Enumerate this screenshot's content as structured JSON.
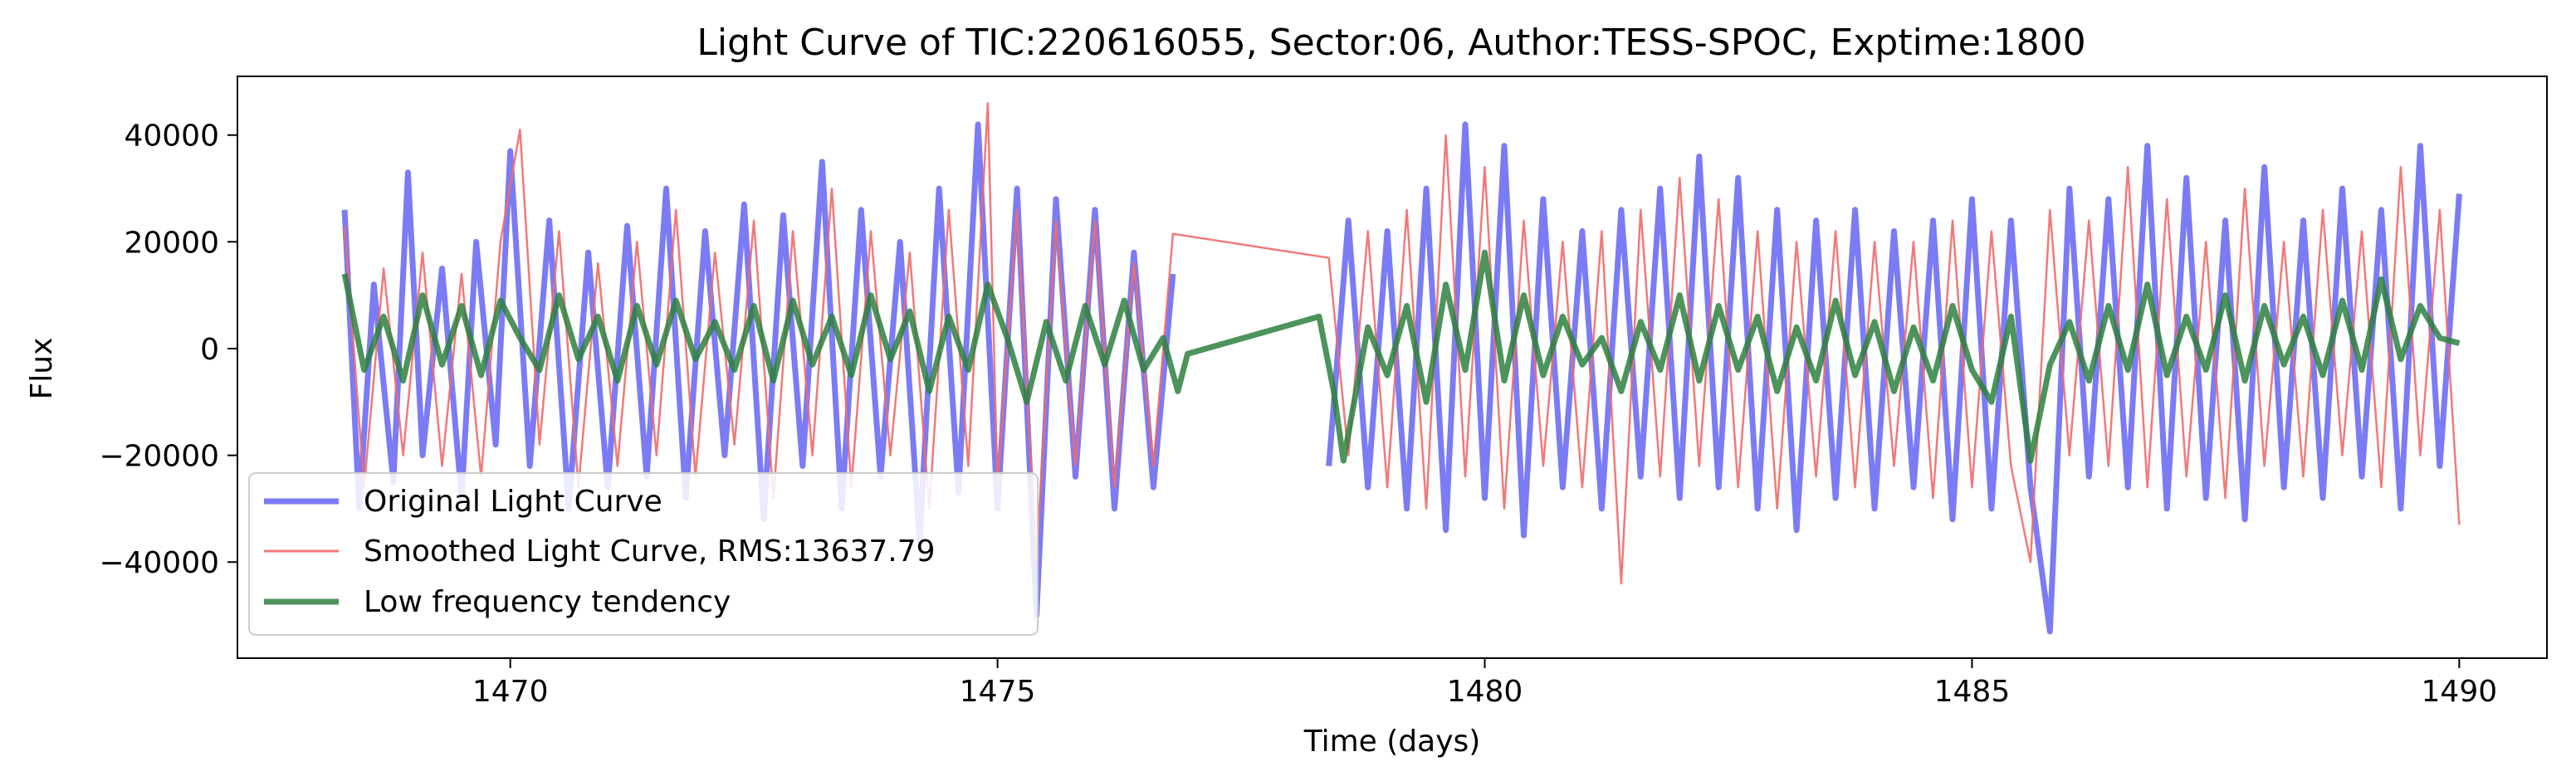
{
  "chart_data": {
    "type": "line",
    "title": "Light Curve of TIC:220616055, Sector:06, Author:TESS-SPOC, Exptime:1800",
    "xlabel": "Time (days)",
    "ylabel": "Flux",
    "xlim": [
      1467.2,
      1490.9
    ],
    "ylim": [
      -58000,
      51000
    ],
    "xticks": [
      1470,
      1475,
      1480,
      1485,
      1490
    ],
    "yticks": [
      -40000,
      -20000,
      0,
      20000,
      40000
    ],
    "xtick_labels": [
      "1470",
      "1475",
      "1480",
      "1485",
      "1490"
    ],
    "ytick_labels": [
      "−40000",
      "−20000",
      "0",
      "20000",
      "40000"
    ],
    "grid": false,
    "legend_position": "lower-left",
    "gap": [
      1476.9,
      1478.4
    ],
    "series": [
      {
        "name": "Original Light Curve",
        "color": "#7b7bf5",
        "segments": [
          {
            "x": [
              1468.3,
              1468.45,
              1468.6,
              1468.8,
              1468.95,
              1469.1,
              1469.3,
              1469.5,
              1469.65,
              1469.85,
              1470.0,
              1470.2,
              1470.4,
              1470.6,
              1470.8,
              1471.0,
              1471.2,
              1471.4,
              1471.6,
              1471.8,
              1472.0,
              1472.2,
              1472.4,
              1472.6,
              1472.8,
              1473.0,
              1473.2,
              1473.4,
              1473.6,
              1473.8,
              1474.0,
              1474.2,
              1474.4,
              1474.6,
              1474.8,
              1475.0,
              1475.2,
              1475.4,
              1475.6,
              1475.8,
              1476.0,
              1476.2,
              1476.4,
              1476.6,
              1476.8
            ],
            "y": [
              26000,
              -30000,
              12000,
              -25000,
              33000,
              -20000,
              15000,
              -28000,
              20000,
              -18000,
              37000,
              -22000,
              24000,
              -30000,
              18000,
              -26000,
              23000,
              -24000,
              30000,
              -28000,
              22000,
              -20000,
              27000,
              -32000,
              25000,
              -22000,
              35000,
              -30000,
              26000,
              -24000,
              20000,
              -36000,
              30000,
              -27000,
              42000,
              -30000,
              30000,
              -50000,
              28000,
              -24000,
              26000,
              -30000,
              18000,
              -26000,
              14000
            ]
          },
          {
            "x": [
              1478.4,
              1478.6,
              1478.8,
              1479.0,
              1479.2,
              1479.4,
              1479.6,
              1479.8,
              1480.0,
              1480.2,
              1480.4,
              1480.6,
              1480.8,
              1481.0,
              1481.2,
              1481.4,
              1481.6,
              1481.8,
              1482.0,
              1482.2,
              1482.4,
              1482.6,
              1482.8,
              1483.0,
              1483.2,
              1483.4,
              1483.6,
              1483.8,
              1484.0,
              1484.2,
              1484.4,
              1484.6,
              1484.8,
              1485.0,
              1485.2,
              1485.4,
              1485.6,
              1485.8,
              1486.0,
              1486.2,
              1486.4,
              1486.6,
              1486.8,
              1487.0,
              1487.2,
              1487.4,
              1487.6,
              1487.8,
              1488.0,
              1488.2,
              1488.4,
              1488.6,
              1488.8,
              1489.0,
              1489.2,
              1489.4,
              1489.6,
              1489.8,
              1490.0
            ],
            "y": [
              -22000,
              24000,
              -26000,
              22000,
              -30000,
              30000,
              -34000,
              42000,
              -28000,
              38000,
              -35000,
              28000,
              -26000,
              22000,
              -30000,
              26000,
              -24000,
              30000,
              -28000,
              36000,
              -26000,
              32000,
              -30000,
              26000,
              -34000,
              24000,
              -28000,
              26000,
              -30000,
              22000,
              -26000,
              24000,
              -32000,
              28000,
              -30000,
              24000,
              -26000,
              -53000,
              30000,
              -24000,
              28000,
              -26000,
              38000,
              -30000,
              32000,
              -28000,
              24000,
              -32000,
              34000,
              -26000,
              24000,
              -28000,
              30000,
              -24000,
              26000,
              -30000,
              38000,
              -22000,
              29000
            ]
          }
        ]
      },
      {
        "name": "Smoothed Light Curve, RMS:13637.79",
        "color": "#f16a6a",
        "segments": [
          {
            "x": [
              1468.3,
              1468.5,
              1468.7,
              1468.9,
              1469.1,
              1469.3,
              1469.5,
              1469.7,
              1469.9,
              1470.1,
              1470.3,
              1470.5,
              1470.7,
              1470.9,
              1471.1,
              1471.3,
              1471.5,
              1471.7,
              1471.9,
              1472.1,
              1472.3,
              1472.5,
              1472.7,
              1472.9,
              1473.1,
              1473.3,
              1473.5,
              1473.7,
              1473.9,
              1474.1,
              1474.3,
              1474.5,
              1474.7,
              1474.9,
              1475.0,
              1475.2,
              1475.4,
              1475.6,
              1475.8,
              1476.0,
              1476.2,
              1476.4,
              1476.6,
              1476.8,
              1478.4,
              1478.6,
              1478.8,
              1479.0,
              1479.2,
              1479.4,
              1479.6,
              1479.8,
              1480.0,
              1480.2,
              1480.4,
              1480.6,
              1480.8,
              1481.0,
              1481.2,
              1481.4,
              1481.6,
              1481.8,
              1482.0,
              1482.2,
              1482.4,
              1482.6,
              1482.8,
              1483.0,
              1483.2,
              1483.4,
              1483.6,
              1483.8,
              1484.0,
              1484.2,
              1484.4,
              1484.6,
              1484.8,
              1485.0,
              1485.2,
              1485.4,
              1485.6,
              1485.8,
              1486.0,
              1486.2,
              1486.4,
              1486.6,
              1486.8,
              1487.0,
              1487.2,
              1487.4,
              1487.6,
              1487.8,
              1488.0,
              1488.2,
              1488.4,
              1488.6,
              1488.8,
              1489.0,
              1489.2,
              1489.4,
              1489.6,
              1489.8,
              1490.0
            ],
            "y": [
              23000,
              -26000,
              15000,
              -20000,
              18000,
              -22000,
              14000,
              -24000,
              20000,
              41000,
              -18000,
              22000,
              -26000,
              16000,
              -22000,
              20000,
              -20000,
              26000,
              -24000,
              18000,
              -18000,
              24000,
              -28000,
              22000,
              -20000,
              30000,
              -26000,
              22000,
              -20000,
              18000,
              -30000,
              26000,
              -22000,
              46000,
              -26000,
              26000,
              -40000,
              24000,
              -22000,
              24000,
              -26000,
              16000,
              -22000,
              21500,
              17000,
              -20000,
              22000,
              -26000,
              26000,
              -30000,
              40000,
              -24000,
              34000,
              -30000,
              24000,
              -22000,
              20000,
              -26000,
              22000,
              -44000,
              26000,
              -24000,
              32000,
              -22000,
              28000,
              -26000,
              22000,
              -30000,
              20000,
              -24000,
              22000,
              -26000,
              20000,
              -22000,
              20000,
              -28000,
              24000,
              -26000,
              22000,
              -22000,
              -40000,
              26000,
              -20000,
              24000,
              -22000,
              34000,
              -26000,
              28000,
              -24000,
              20000,
              -28000,
              30000,
              -22000,
              20000,
              -24000,
              26000,
              -20000,
              22000,
              -26000,
              34000,
              -20000,
              26000,
              -33000
            ]
          }
        ]
      },
      {
        "name": "Low frequency tendency",
        "color": "#2e8040",
        "segments": [
          {
            "x": [
              1468.3,
              1468.5,
              1468.7,
              1468.9,
              1469.1,
              1469.3,
              1469.5,
              1469.7,
              1469.9,
              1470.1,
              1470.3,
              1470.5,
              1470.7,
              1470.9,
              1471.1,
              1471.3,
              1471.5,
              1471.7,
              1471.9,
              1472.1,
              1472.3,
              1472.5,
              1472.7,
              1472.9,
              1473.1,
              1473.3,
              1473.5,
              1473.7,
              1473.9,
              1474.1,
              1474.3,
              1474.5,
              1474.7,
              1474.9,
              1475.1,
              1475.3,
              1475.5,
              1475.7,
              1475.9,
              1476.1,
              1476.3,
              1476.5,
              1476.7,
              1476.85,
              1476.95,
              1478.3,
              1478.45,
              1478.55,
              1478.8,
              1479.0,
              1479.2,
              1479.4,
              1479.6,
              1479.8,
              1480.0,
              1480.2,
              1480.4,
              1480.6,
              1480.8,
              1481.0,
              1481.2,
              1481.4,
              1481.6,
              1481.8,
              1482.0,
              1482.2,
              1482.4,
              1482.6,
              1482.8,
              1483.0,
              1483.2,
              1483.4,
              1483.6,
              1483.8,
              1484.0,
              1484.2,
              1484.4,
              1484.6,
              1484.8,
              1485.0,
              1485.2,
              1485.4,
              1485.6,
              1485.8,
              1486.0,
              1486.2,
              1486.4,
              1486.6,
              1486.8,
              1487.0,
              1487.2,
              1487.4,
              1487.6,
              1487.8,
              1488.0,
              1488.2,
              1488.4,
              1488.6,
              1488.8,
              1489.0,
              1489.2,
              1489.4,
              1489.6,
              1489.8,
              1490.0
            ],
            "y": [
              14000,
              -4000,
              6000,
              -6000,
              10000,
              -3000,
              8000,
              -5000,
              9000,
              2000,
              -4000,
              10000,
              -2000,
              6000,
              -6000,
              8000,
              -3000,
              9000,
              -2000,
              5000,
              -4000,
              8000,
              -6000,
              9000,
              -3000,
              6000,
              -5000,
              10000,
              -2000,
              7000,
              -8000,
              6000,
              -4000,
              12000,
              2000,
              -10000,
              5000,
              -6000,
              8000,
              -3000,
              9000,
              -4000,
              2000,
              -8000,
              -1000,
              6000,
              -8000,
              -21000,
              4000,
              -5000,
              8000,
              -10000,
              12000,
              -4000,
              18000,
              -6000,
              10000,
              -5000,
              6000,
              -3000,
              2000,
              -8000,
              5000,
              -4000,
              10000,
              -6000,
              8000,
              -4000,
              6000,
              -8000,
              4000,
              -6000,
              9000,
              -5000,
              5000,
              -8000,
              4000,
              -6000,
              8000,
              -4000,
              -10000,
              6000,
              -21000,
              -3000,
              5000,
              -6000,
              8000,
              -4000,
              12000,
              -5000,
              6000,
              -4000,
              10000,
              -6000,
              8000,
              -3000,
              6000,
              -5000,
              9000,
              -4000,
              13000,
              -2000,
              8000,
              2000,
              1000
            ]
          }
        ]
      }
    ]
  }
}
